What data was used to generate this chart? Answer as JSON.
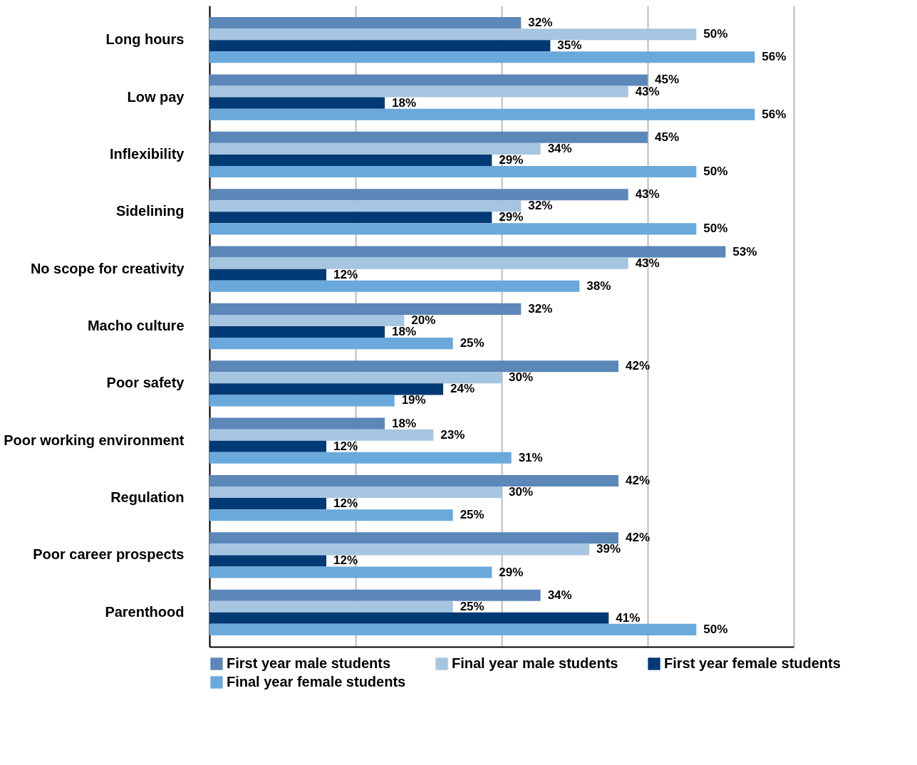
{
  "chart_data": {
    "type": "bar",
    "orientation": "horizontal",
    "categories": [
      "Long hours",
      "Low pay",
      "Inflexibility",
      "Sidelining",
      "No scope for creativity",
      "Macho culture",
      "Poor safety",
      "Poor working environment",
      "Regulation",
      "Poor career prospects",
      "Parenthood"
    ],
    "series": [
      {
        "name": "First year male students",
        "color": "#5b87b9",
        "values": [
          32,
          45,
          45,
          43,
          53,
          32,
          42,
          18,
          42,
          42,
          34
        ],
        "value_labels": [
          "32%",
          "45%",
          "45%",
          "43%",
          "53%",
          "32%",
          "42%",
          "18%",
          "42%",
          "42%",
          "34%"
        ]
      },
      {
        "name": "Final year male students",
        "color": "#a6c5e0",
        "values": [
          50,
          43,
          34,
          32,
          43,
          20,
          30,
          23,
          30,
          39,
          25
        ],
        "value_labels": [
          "50%",
          "43%",
          "34%",
          "32%",
          "43%",
          "20%",
          "30%",
          "23%",
          "30%",
          "39%",
          "25%"
        ]
      },
      {
        "name": "First year female students",
        "color": "#003a75",
        "values": [
          35,
          18,
          29,
          29,
          12,
          18,
          24,
          12,
          12,
          12,
          41
        ],
        "value_labels": [
          "35%",
          "18%",
          "29%",
          "29%",
          "12%",
          "18%",
          "24%",
          "12%",
          "12%",
          "12%",
          "41%"
        ]
      },
      {
        "name": "Final year female students",
        "color": "#6aa9db",
        "values": [
          56,
          56,
          50,
          50,
          38,
          25,
          19,
          31,
          25,
          29,
          50
        ],
        "value_labels": [
          "56%",
          "56%",
          "50%",
          "50%",
          "38%",
          "25%",
          "19%",
          "31%",
          "25%",
          "29%",
          "50%"
        ]
      }
    ],
    "xlim": [
      0,
      60
    ],
    "xticks": [
      {
        "value": 0,
        "label": null
      },
      {
        "value": 15,
        "label": null
      },
      {
        "value": 30,
        "label": null
      },
      {
        "value": 45,
        "label": null
      },
      {
        "value": 60,
        "label": null
      }
    ],
    "grid": "x",
    "tick_labels": "y",
    "legend": "bottom"
  }
}
